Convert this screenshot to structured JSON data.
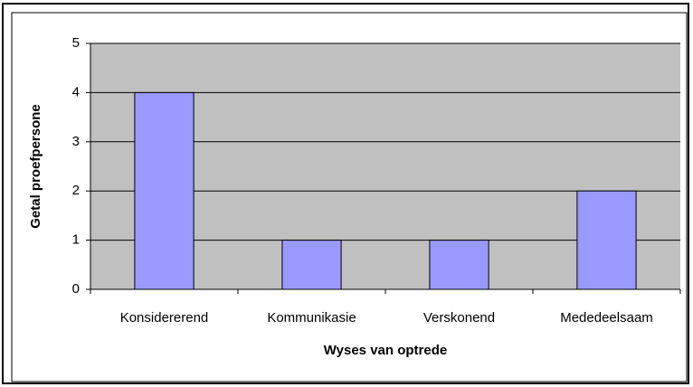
{
  "chart_data": {
    "type": "bar",
    "categories": [
      "Konsidererend",
      "Kommunikasie",
      "Verskonend",
      "Mededeelsaam"
    ],
    "values": [
      4,
      1,
      1,
      2
    ],
    "color": "#9999ff",
    "xlabel": "Wyses van optrede",
    "ylabel": "Getal proefpersone",
    "ylim": [
      0,
      5
    ],
    "yticks": [
      0,
      1,
      2,
      3,
      4,
      5
    ],
    "grid": true
  }
}
